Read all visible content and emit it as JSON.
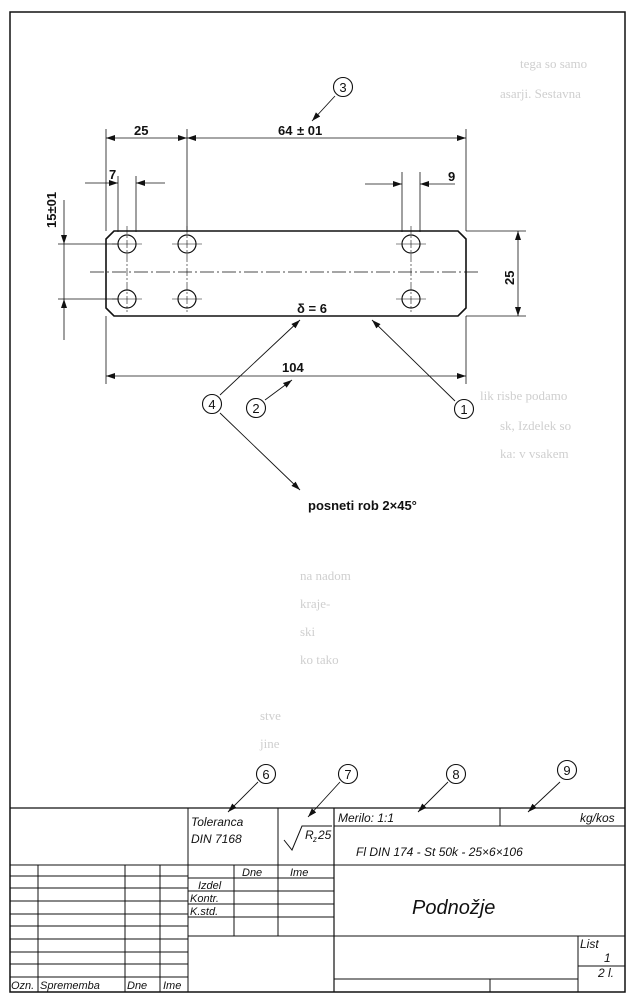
{
  "drawing": {
    "dimensions": {
      "d25_top": "25",
      "d64": "64",
      "d64_tol": "± 01",
      "d7": "7",
      "d9": "9",
      "d15": "15±01",
      "d25_right": "25",
      "d104": "104",
      "thickness": "δ = 6"
    },
    "note_chamfer": "posneti rob 2×45°",
    "callouts": [
      "3",
      "4",
      "2",
      "1",
      "6",
      "7",
      "8",
      "9"
    ]
  },
  "title_block": {
    "tolerance_label": "Toleranca",
    "tolerance_std": "DIN  7168",
    "roughness": "R",
    "roughness_sub": "z",
    "roughness_value": "25",
    "scale": "Merilo:  1:1",
    "unit": "kg/kos",
    "material": "Fl  DIN  174  -  St  50k  -  25×6×106",
    "col_dne": "Dne",
    "col_ime": "Ime",
    "izdel": "Izdel",
    "kontr": "Kontr.",
    "kstd": "K.std.",
    "part_name": "Podnožje",
    "sheet_label": "List",
    "sheet_no": "1",
    "sheet_total": "2  l.",
    "rev_ozn": "Ozn.",
    "rev_sprememba": "Sprememba",
    "rev_dne": "Dne",
    "rev_ime": "Ime"
  },
  "bleed_text": [
    "tega so samo",
    "asarji. Sestavna",
    "lik risbe podamo",
    "sk, Izdelek so",
    "ka: v vsakem",
    "na nadom",
    "kraje-",
    "ski",
    "ko tako",
    "stve",
    "jine"
  ]
}
